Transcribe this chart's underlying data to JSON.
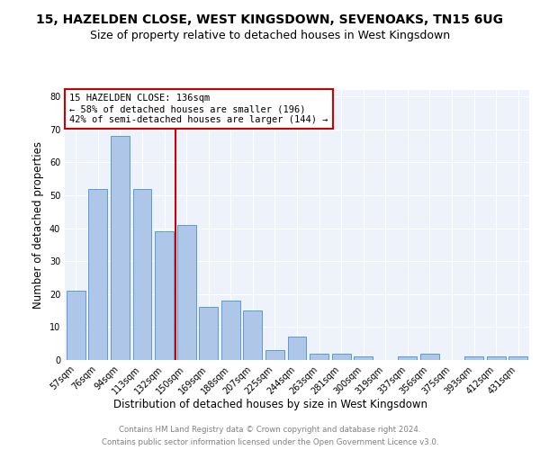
{
  "title": "15, HAZELDEN CLOSE, WEST KINGSDOWN, SEVENOAKS, TN15 6UG",
  "subtitle": "Size of property relative to detached houses in West Kingsdown",
  "xlabel": "Distribution of detached houses by size in West Kingsdown",
  "ylabel": "Number of detached properties",
  "categories": [
    "57sqm",
    "76sqm",
    "94sqm",
    "113sqm",
    "132sqm",
    "150sqm",
    "169sqm",
    "188sqm",
    "207sqm",
    "225sqm",
    "244sqm",
    "263sqm",
    "281sqm",
    "300sqm",
    "319sqm",
    "337sqm",
    "356sqm",
    "375sqm",
    "393sqm",
    "412sqm",
    "431sqm"
  ],
  "values": [
    21,
    52,
    68,
    52,
    39,
    41,
    16,
    18,
    15,
    3,
    7,
    2,
    2,
    1,
    0,
    1,
    2,
    0,
    1,
    1,
    1
  ],
  "bar_color": "#aec6e8",
  "bar_edge_color": "#5b9bd5",
  "vline_x_index": 4.5,
  "vline_color": "#cc0000",
  "annotation_text": "15 HAZELDEN CLOSE: 136sqm\n← 58% of detached houses are smaller (196)\n42% of semi-detached houses are larger (144) →",
  "annotation_box_color": "#cc0000",
  "ylim": [
    0,
    82
  ],
  "yticks": [
    0,
    10,
    20,
    30,
    40,
    50,
    60,
    70,
    80
  ],
  "footer_line1": "Contains HM Land Registry data © Crown copyright and database right 2024.",
  "footer_line2": "Contains public sector information licensed under the Open Government Licence v3.0.",
  "background_color": "#eef2fb",
  "grid_color": "#ffffff",
  "title_fontsize": 10,
  "subtitle_fontsize": 9,
  "tick_fontsize": 7,
  "ylabel_fontsize": 8.5,
  "xlabel_fontsize": 8.5,
  "annotation_fontsize": 7.5,
  "footer_fontsize": 6.2
}
